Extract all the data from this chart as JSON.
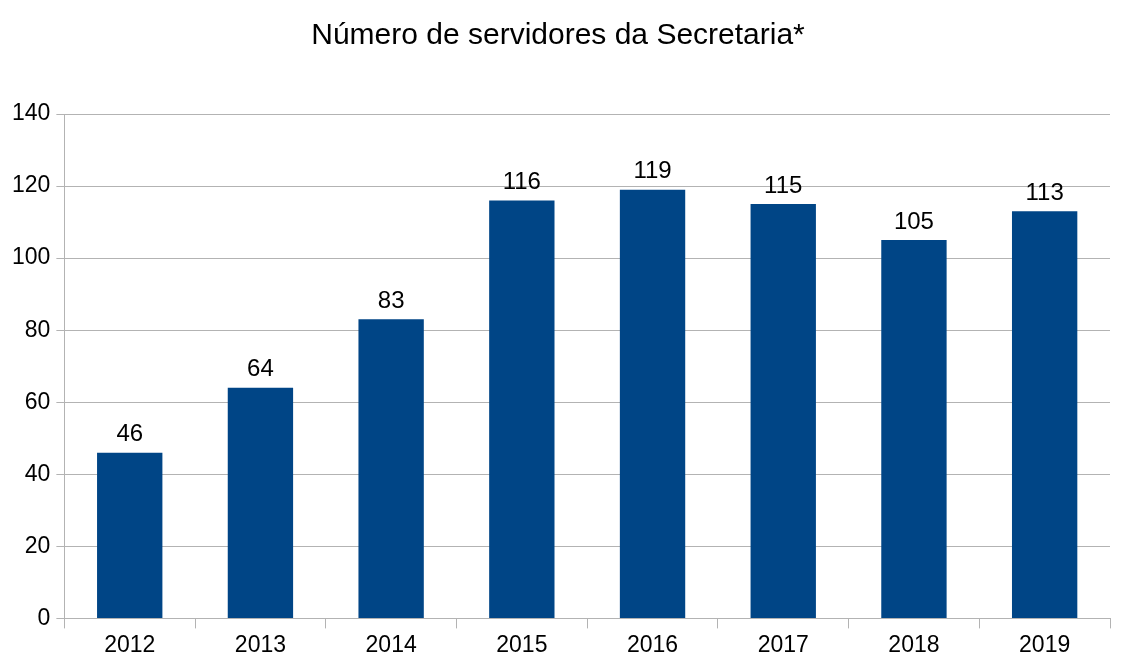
{
  "chart_data": {
    "type": "bar",
    "title": "Número de servidores da Secretaria*",
    "categories": [
      "2012",
      "2013",
      "2014",
      "2015",
      "2016",
      "2017",
      "2018",
      "2019"
    ],
    "values": [
      46,
      64,
      83,
      116,
      119,
      115,
      105,
      113
    ],
    "color": "#004586",
    "ylim": [
      0,
      140
    ],
    "yticks": [
      0,
      20,
      40,
      60,
      80,
      100,
      120,
      140
    ],
    "grid": "y",
    "data_labels": true
  }
}
